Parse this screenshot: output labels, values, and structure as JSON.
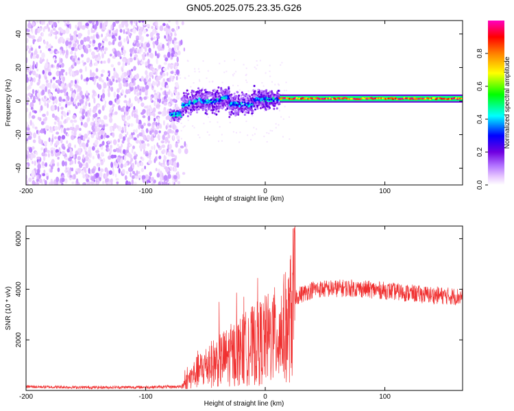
{
  "title": "GN05.2025.075.23.35.G26",
  "chart_data": [
    {
      "type": "heatmap",
      "xlabel": "Height of straight line (km)",
      "ylabel": "Frequency (Hz)",
      "xlim": [
        -200,
        165
      ],
      "ylim": [
        -50,
        48
      ],
      "xticks": [
        -200,
        -100,
        0,
        100
      ],
      "yticks": [
        -40,
        -20,
        0,
        20,
        40
      ],
      "colorbar": {
        "label": "Normalized spectral amplitude",
        "range": [
          0,
          1
        ],
        "ticks": [
          "0.0",
          "0.2",
          "0.4",
          "0.6",
          "0.8"
        ],
        "colors": [
          "#ffffff",
          "#e8c8ff",
          "#b070ff",
          "#7000e0",
          "#0000ff",
          "#00ffff",
          "#00ff00",
          "#ffff00",
          "#ff8000",
          "#ff0000",
          "#ff00c0"
        ]
      },
      "regions": [
        {
          "x_start": -200,
          "x_end": -70,
          "description_values": "noise",
          "freq_min": -50,
          "freq_max": 48,
          "amplitude": 0.15
        },
        {
          "x_start": -80,
          "x_end": -70,
          "freq_center": -8,
          "amplitude": 0.35
        },
        {
          "x_start": -70,
          "x_end": 12,
          "freq_center": 0,
          "freq_spread": 6,
          "amplitude": 0.4
        },
        {
          "x_start": 12,
          "x_end": 165,
          "freq_center": 1.5,
          "freq_spread": 2,
          "amplitude": 0.85
        }
      ],
      "grid": false,
      "gridlines": false,
      "legend": "right",
      "legend_position": "right"
    },
    {
      "type": "line",
      "xlabel": "Height of straight line (km)",
      "ylabel": "SNR (10 * v/v)",
      "xlim": [
        -200,
        165
      ],
      "ylim": [
        0,
        6500
      ],
      "xticks": [
        -200,
        -100,
        0,
        100
      ],
      "yticks": [
        2000,
        4000,
        6000
      ],
      "color": "#f03030",
      "envelope": [
        {
          "x": -200,
          "y": 150
        },
        {
          "x": -150,
          "y": 120
        },
        {
          "x": -100,
          "y": 130
        },
        {
          "x": -70,
          "y": 150
        },
        {
          "x": -60,
          "y": 600
        },
        {
          "x": -50,
          "y": 900
        },
        {
          "x": -40,
          "y": 1100
        },
        {
          "x": -30,
          "y": 1300
        },
        {
          "x": -20,
          "y": 1500
        },
        {
          "x": -10,
          "y": 1700
        },
        {
          "x": 0,
          "y": 1900
        },
        {
          "x": 10,
          "y": 2100
        },
        {
          "x": 20,
          "y": 2500
        },
        {
          "x": 25,
          "y": 3700
        },
        {
          "x": 40,
          "y": 4000
        },
        {
          "x": 70,
          "y": 4050
        },
        {
          "x": 100,
          "y": 3950
        },
        {
          "x": 130,
          "y": 3800
        },
        {
          "x": 165,
          "y": 3700
        }
      ],
      "grid": false
    }
  ]
}
